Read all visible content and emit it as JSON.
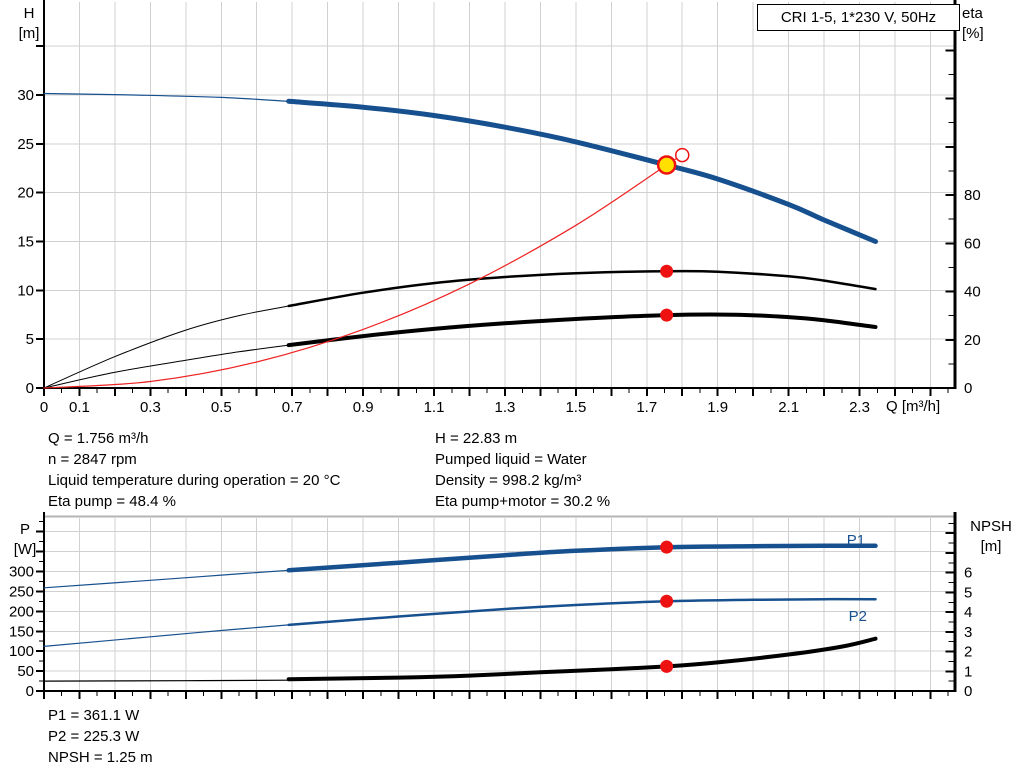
{
  "colors": {
    "curve_blue": "#17508f",
    "curve_black": "#000000",
    "duty_red": "#ee2222",
    "marker_red": "#ee1111",
    "marker_yellow": "#ffe000",
    "grid": "#d0d0d0",
    "axis": "#000000",
    "frame_gray": "#b4b4b4"
  },
  "info_top": {
    "left": [
      "Q = 1.756 m³/h",
      "n = 2847 rpm",
      "Liquid temperature during operation = 20 °C",
      "Eta pump = 48.4 %"
    ],
    "right": [
      "H = 22.83 m",
      "Pumped liquid = Water",
      "Density = 998.2 kg/m³",
      "Eta pump+motor = 30.2 %"
    ]
  },
  "info_bottom": [
    "P1 = 361.1 W",
    "P2 = 225.3 W",
    "NPSH = 1.25 m"
  ],
  "chart_data": [
    {
      "type": "line",
      "title": "CRI 1-5, 1*230 V, 50Hz",
      "x_label": "Q [m³/h]",
      "y_left_label": [
        "H",
        "[m]"
      ],
      "y_right_label": [
        "eta",
        "[%]"
      ],
      "x_range": [
        0,
        2.57
      ],
      "x_tick_labels": [
        "0",
        "0.1",
        "0.3",
        "0.5",
        "0.7",
        "0.9",
        "1.1",
        "1.3",
        "1.5",
        "1.7",
        "1.9",
        "2.1",
        "2.3"
      ],
      "y_left_range": [
        0,
        38.9
      ],
      "y_left_tick_labels": [
        0,
        5,
        10,
        15,
        20,
        25,
        30
      ],
      "y_right_range": [
        0,
        157
      ],
      "y_right_tick_labels": [
        0,
        20,
        40,
        60,
        80
      ],
      "grid": true,
      "series": [
        {
          "name": "h-curve-ext",
          "axis": "H",
          "color": "curve_blue",
          "width": 1.2,
          "points": [
            [
              0,
              30.15
            ],
            [
              0.25,
              30.0
            ],
            [
              0.5,
              29.75
            ],
            [
              0.69,
              29.35
            ]
          ]
        },
        {
          "name": "h-curve",
          "axis": "H",
          "color": "curve_blue",
          "width": 5,
          "points": [
            [
              0.69,
              29.35
            ],
            [
              0.9,
              28.75
            ],
            [
              1.1,
              27.9
            ],
            [
              1.3,
              26.7
            ],
            [
              1.5,
              25.2
            ],
            [
              1.756,
              22.83
            ],
            [
              1.9,
              21.4
            ],
            [
              2.1,
              18.8
            ],
            [
              2.2,
              17.2
            ],
            [
              2.345,
              15.0
            ]
          ]
        },
        {
          "name": "eta-pump-ext",
          "axis": "eta",
          "color": "curve_black",
          "width": 1,
          "points": [
            [
              0,
              0
            ],
            [
              0.2,
              13
            ],
            [
              0.4,
              24
            ],
            [
              0.55,
              30
            ],
            [
              0.69,
              34
            ]
          ]
        },
        {
          "name": "eta-pump-curve",
          "axis": "eta",
          "color": "curve_black",
          "width": 2.5,
          "points": [
            [
              0.69,
              34
            ],
            [
              0.9,
              39.5
            ],
            [
              1.1,
              43.5
            ],
            [
              1.3,
              46
            ],
            [
              1.5,
              47.6
            ],
            [
              1.756,
              48.4
            ],
            [
              1.9,
              48.2
            ],
            [
              2.1,
              46.3
            ],
            [
              2.2,
              44.5
            ],
            [
              2.345,
              41
            ]
          ]
        },
        {
          "name": "eta-pump-motor-ext",
          "axis": "eta",
          "color": "curve_black",
          "width": 1,
          "points": [
            [
              0,
              0
            ],
            [
              0.2,
              6.5
            ],
            [
              0.4,
              11.5
            ],
            [
              0.55,
              15
            ],
            [
              0.69,
              17.8
            ]
          ]
        },
        {
          "name": "eta-pump-motor-curve",
          "axis": "eta",
          "color": "curve_black",
          "width": 4,
          "points": [
            [
              0.69,
              17.8
            ],
            [
              0.9,
              21.5
            ],
            [
              1.1,
              24.5
            ],
            [
              1.3,
              26.8
            ],
            [
              1.5,
              28.6
            ],
            [
              1.756,
              30.2
            ],
            [
              1.95,
              30.4
            ],
            [
              2.1,
              29.4
            ],
            [
              2.2,
              28.1
            ],
            [
              2.345,
              25.3
            ]
          ]
        },
        {
          "name": "duty-curve",
          "axis": "H",
          "color": "duty_red",
          "width": 1.2,
          "points": [
            [
              0,
              0
            ],
            [
              0.3,
              0.67
            ],
            [
              0.6,
              2.66
            ],
            [
              0.9,
              6.0
            ],
            [
              1.2,
              10.66
            ],
            [
              1.5,
              16.66
            ],
            [
              1.756,
              22.83
            ],
            [
              1.8,
              23.85
            ]
          ]
        }
      ],
      "markers": [
        {
          "name": "eta-pump-point",
          "type": "dot",
          "axis": "eta",
          "q": 1.756,
          "v": 48.4
        },
        {
          "name": "eta-pump-motor-point",
          "type": "dot",
          "axis": "eta",
          "q": 1.756,
          "v": 30.2
        },
        {
          "name": "operating-point",
          "type": "op",
          "axis": "H",
          "q": 1.756,
          "v": 22.83
        },
        {
          "name": "duty-end-point",
          "type": "open",
          "axis": "H",
          "q": 1.8,
          "v": 23.85
        }
      ]
    },
    {
      "type": "line",
      "x_label": "",
      "y_left_label": [
        "P",
        "[W]"
      ],
      "y_right_label": [
        "NPSH",
        "[m]"
      ],
      "x_range": [
        0,
        2.57
      ],
      "y_left_range": [
        0,
        434
      ],
      "y_left_tick_labels": [
        0,
        50,
        100,
        150,
        200,
        250,
        300
      ],
      "y_right_range": [
        0,
        8.8
      ],
      "y_right_tick_labels": [
        0,
        1,
        2,
        3,
        4,
        5,
        6
      ],
      "grid": true,
      "series": [
        {
          "name": "p1-ext",
          "axis": "P",
          "color": "curve_blue",
          "width": 1.2,
          "points": [
            [
              0,
              259
            ],
            [
              0.3,
              278
            ],
            [
              0.5,
              291
            ],
            [
              0.69,
              303
            ]
          ]
        },
        {
          "name": "p1-curve",
          "axis": "P",
          "color": "curve_blue",
          "width": 4.5,
          "points": [
            [
              0.69,
              303
            ],
            [
              1.0,
              322
            ],
            [
              1.3,
              341
            ],
            [
              1.5,
              352
            ],
            [
              1.756,
              361.1
            ],
            [
              2.0,
              363.5
            ],
            [
              2.2,
              364.5
            ],
            [
              2.345,
              364.5
            ]
          ]
        },
        {
          "name": "p2-ext",
          "axis": "P",
          "color": "curve_blue",
          "width": 1.2,
          "points": [
            [
              0,
              112
            ],
            [
              0.3,
              136
            ],
            [
              0.5,
              152
            ],
            [
              0.69,
              166
            ]
          ]
        },
        {
          "name": "p2-curve",
          "axis": "P",
          "color": "curve_blue",
          "width": 2.5,
          "points": [
            [
              0.69,
              166
            ],
            [
              1.0,
              187
            ],
            [
              1.3,
              206
            ],
            [
              1.5,
              216
            ],
            [
              1.756,
              225.3
            ],
            [
              2.0,
              229
            ],
            [
              2.2,
              230.5
            ],
            [
              2.345,
              230.5
            ]
          ]
        },
        {
          "name": "npsh-ext",
          "axis": "NPSH",
          "color": "curve_black",
          "width": 1.2,
          "points": [
            [
              0,
              0.5
            ],
            [
              0.4,
              0.52
            ],
            [
              0.69,
              0.55
            ]
          ]
        },
        {
          "name": "npsh-curve",
          "axis": "NPSH",
          "color": "curve_black",
          "width": 4,
          "points": [
            [
              0.69,
              0.6
            ],
            [
              1.0,
              0.68
            ],
            [
              1.2,
              0.78
            ],
            [
              1.4,
              0.95
            ],
            [
              1.6,
              1.1
            ],
            [
              1.756,
              1.25
            ],
            [
              1.9,
              1.45
            ],
            [
              2.1,
              1.85
            ],
            [
              2.25,
              2.25
            ],
            [
              2.345,
              2.65
            ]
          ]
        }
      ],
      "markers": [
        {
          "name": "p1-point",
          "type": "dot",
          "axis": "P",
          "q": 1.756,
          "v": 361.1
        },
        {
          "name": "p2-point",
          "type": "dot",
          "axis": "P",
          "q": 1.756,
          "v": 225.3
        },
        {
          "name": "npsh-point",
          "type": "dot",
          "axis": "NPSH",
          "q": 1.756,
          "v": 1.25
        }
      ],
      "curve_labels": [
        {
          "text": "P1",
          "axis": "P",
          "q": 2.29,
          "v": 366
        },
        {
          "text": "P2",
          "axis": "P",
          "q": 2.295,
          "v": 176
        }
      ]
    }
  ]
}
